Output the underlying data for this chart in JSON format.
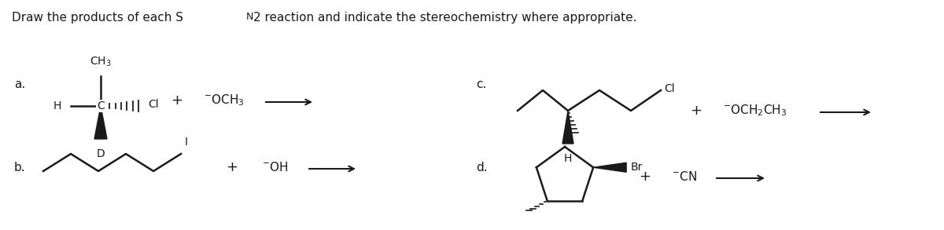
{
  "title": "Draw the products of each Sₙ 2 reaction and indicate the stereochemistry where appropriate.",
  "background_color": "#ffffff",
  "text_color": "#1a1a1a",
  "figsize": [
    12.0,
    2.93
  ],
  "dpi": 100,
  "title_plain": "Draw the products of each S",
  "title_sub": "N",
  "title_rest": "2 reaction and indicate the stereochemistry where appropriate."
}
